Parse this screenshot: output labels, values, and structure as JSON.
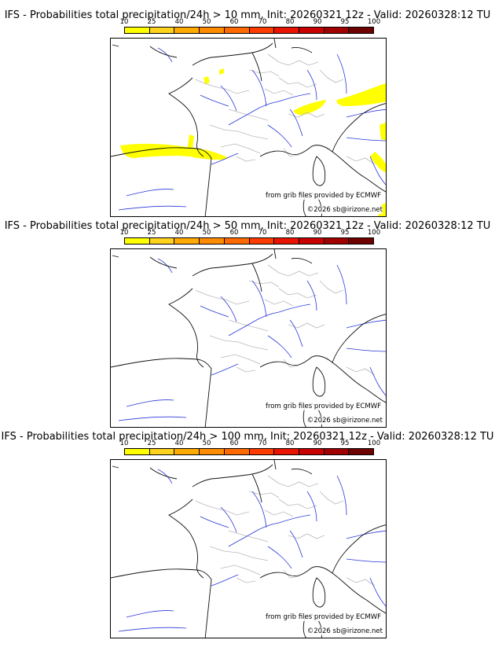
{
  "scale_labels": [
    "10",
    "25",
    "40",
    "50",
    "60",
    "70",
    "80",
    "90",
    "95",
    "100"
  ],
  "scale_colors": [
    "#ffff00",
    "#ffd21e",
    "#ffaa00",
    "#ff8c00",
    "#ff6a00",
    "#ff3c00",
    "#e81400",
    "#c80000",
    "#a00000",
    "#6e0000"
  ],
  "panels": [
    {
      "title": "IFS - Probabilities total precipitation/24h > 10 mm, Init: 20260321 12z - Valid: 20260328:12 TU",
      "credit_source": "from grib files provided by ECMWF",
      "credit_copyright": "©2026 sb@irizone.net",
      "precip_areas": [
        "bay-of-biscay-coast",
        "alpine-north",
        "north-channel",
        "lower-right-alps"
      ]
    },
    {
      "title": "IFS - Probabilities total precipitation/24h > 50 mm, Init: 20260321 12z - Valid: 20260328:12 TU",
      "credit_source": "from grib files provided by ECMWF",
      "credit_copyright": "©2026 sb@irizone.net",
      "precip_areas": []
    },
    {
      "title": "IFS - Probabilities total precipitation/24h > 100 mm, Init: 20260321 12z - Valid: 20260328:12 TU",
      "credit_source": "from grib files provided by ECMWF",
      "credit_copyright": "©2026 sb@irizone.net",
      "precip_areas": []
    }
  ]
}
